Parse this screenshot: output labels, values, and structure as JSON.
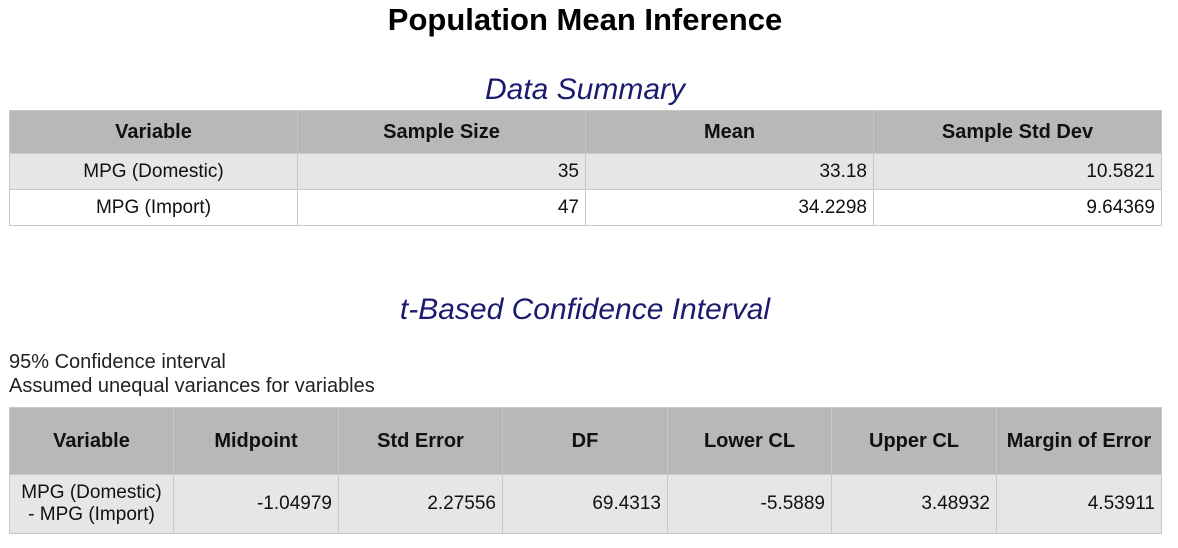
{
  "title": "Population Mean Inference",
  "data_summary": {
    "title": "Data Summary",
    "columns": [
      "Variable",
      "Sample Size",
      "Mean",
      "Sample Std Dev"
    ],
    "rows": [
      {
        "variable": "MPG (Domestic)",
        "sample_size": "35",
        "mean": "33.18",
        "std_dev": "10.5821"
      },
      {
        "variable": "MPG (Import)",
        "sample_size": "47",
        "mean": "34.2298",
        "std_dev": "9.64369"
      }
    ]
  },
  "confidence_interval": {
    "title": "t-Based Confidence Interval",
    "note_1": "95% Confidence interval",
    "note_2": "Assumed unequal variances for variables",
    "columns": [
      "Variable",
      "Midpoint",
      "Std Error",
      "DF",
      "Lower CL",
      "Upper CL",
      "Margin of Error"
    ],
    "rows": [
      {
        "variable_line_1": "MPG (Domestic)",
        "variable_line_2": "- MPG (Import)",
        "midpoint": "-1.04979",
        "std_error": "2.27556",
        "df": "69.4313",
        "lower_cl": "-5.5889",
        "upper_cl": "3.48932",
        "margin_of_error": "4.53911"
      }
    ]
  },
  "colors": {
    "section_title": "#1a1a6e",
    "header_bg": "#b8b8b8",
    "row_shaded_bg": "#e6e6e6",
    "border": "#c8c8c8"
  }
}
